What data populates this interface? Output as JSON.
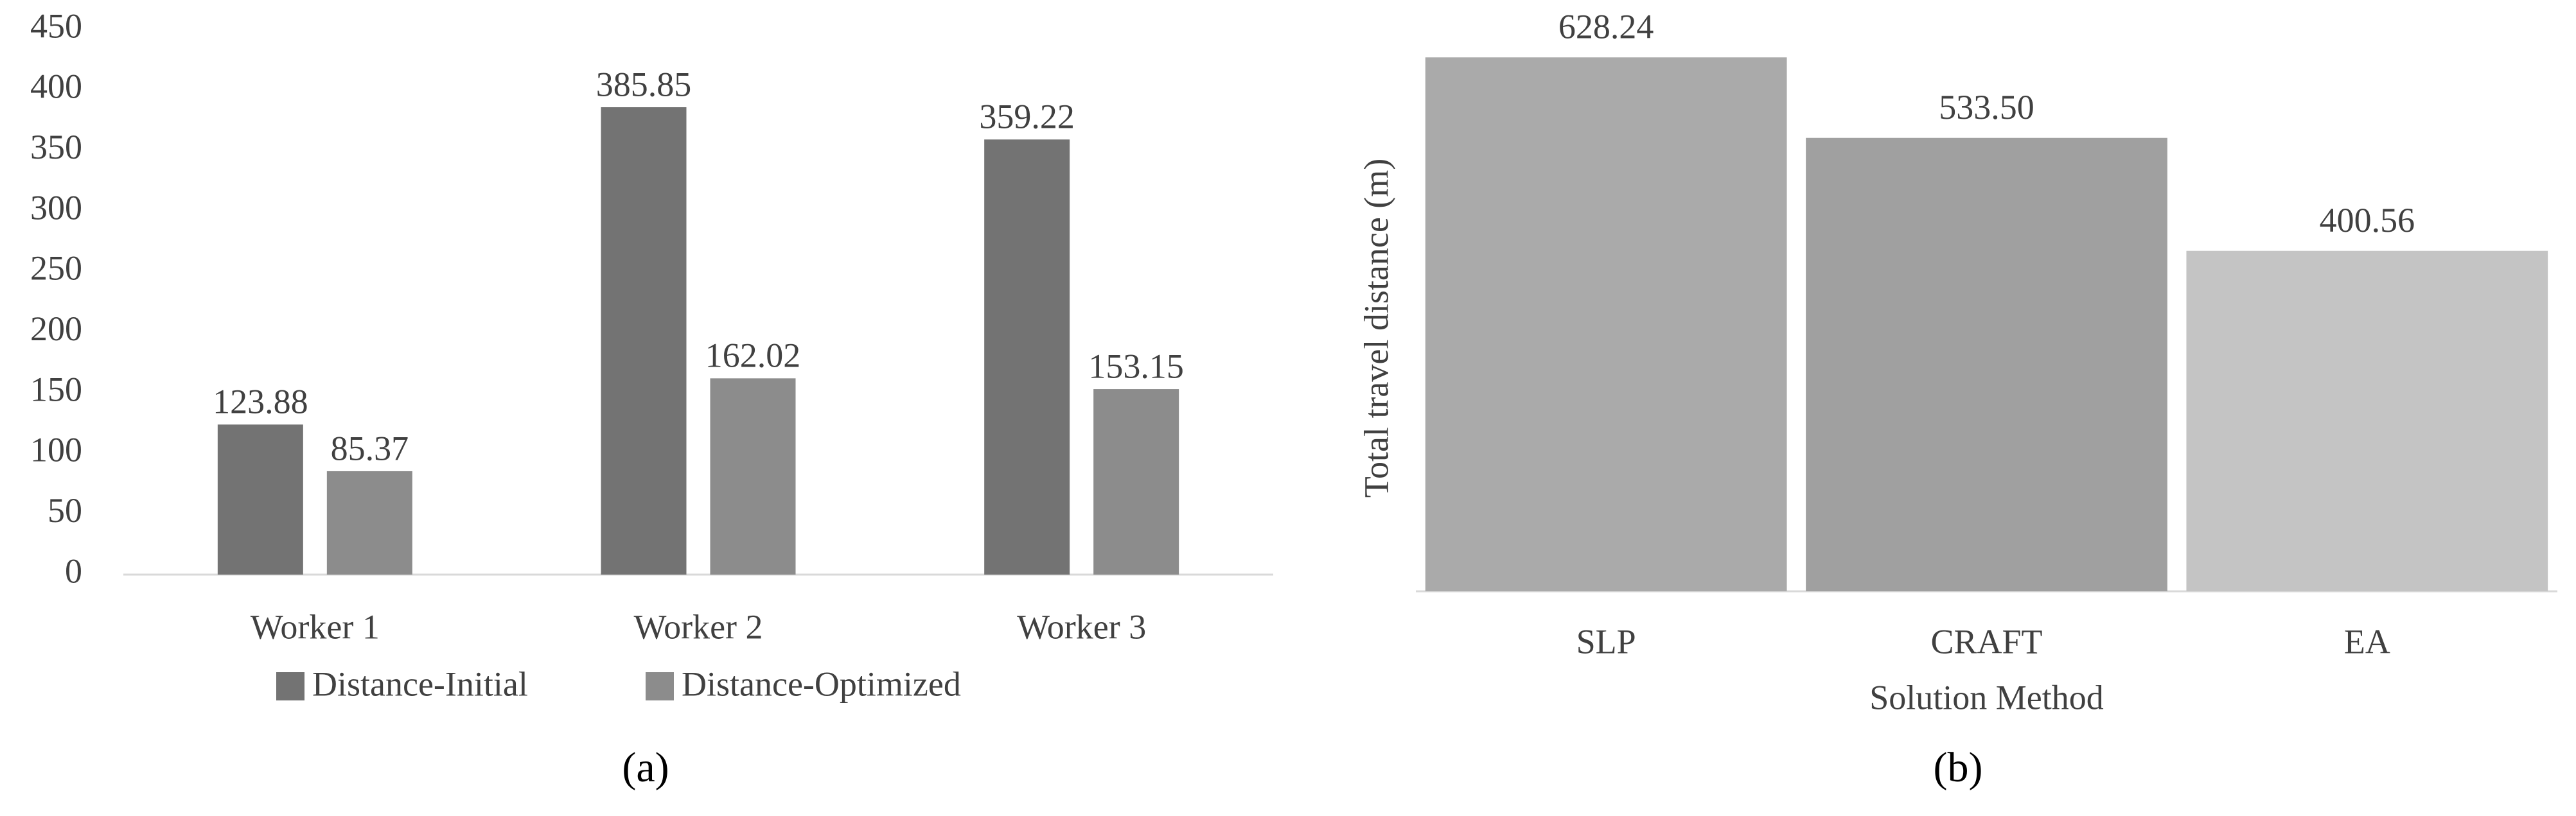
{
  "chart_data": [
    {
      "type": "bar",
      "categories": [
        "Worker 1",
        "Worker 2",
        "Worker 3"
      ],
      "series": [
        {
          "name": "Distance-Initial",
          "color": "#737373",
          "values": [
            123.88,
            385.85,
            359.22
          ]
        },
        {
          "name": "Distance-Optimized",
          "color": "#8c8c8c",
          "values": [
            85.37,
            162.02,
            153.15
          ]
        }
      ],
      "ylim": [
        0,
        450
      ],
      "yticks": [
        0,
        50,
        100,
        150,
        200,
        250,
        300,
        350,
        400,
        450
      ],
      "grid": false,
      "legend": "bottom",
      "caption": "(a)"
    },
    {
      "type": "bar",
      "categories": [
        "SLP",
        "CRAFT",
        "EA"
      ],
      "values": [
        628.24,
        533.5,
        400.56
      ],
      "value_labels": [
        "628.24",
        "533.50",
        "400.56"
      ],
      "colors": [
        "#aaaaaa",
        "#a0a0a0",
        "#c4c4c4"
      ],
      "ylim": [
        0,
        630
      ],
      "ylabel": "Total travel distance (m)",
      "xlabel": "Solution Method",
      "caption": "(b)"
    }
  ]
}
